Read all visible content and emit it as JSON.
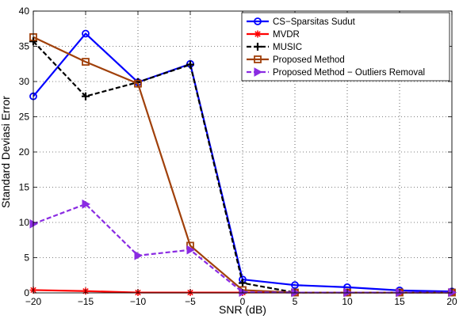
{
  "chart_data": {
    "type": "line",
    "title": "",
    "xlabel": "SNR (dB)",
    "ylabel": "Standard Deviasi Error",
    "x": [
      -20,
      -15,
      -10,
      -5,
      0,
      5,
      10,
      15,
      20
    ],
    "xlim": [
      -20,
      20
    ],
    "ylim": [
      0,
      40
    ],
    "xticks": [
      -20,
      -15,
      -10,
      -5,
      0,
      5,
      10,
      15,
      20
    ],
    "yticks": [
      0,
      5,
      10,
      15,
      20,
      25,
      30,
      35,
      40
    ],
    "grid": true,
    "legend_position": "top-right",
    "series": [
      {
        "name": "CS−Sparsitas Sudut",
        "color": "#0000ff",
        "line": "solid",
        "marker": "circle",
        "values": [
          27.9,
          36.8,
          29.9,
          32.5,
          1.9,
          1.1,
          0.8,
          0.35,
          0.2
        ]
      },
      {
        "name": "MVDR",
        "color": "#ff0000",
        "line": "solid",
        "marker": "star",
        "values": [
          0.4,
          0.25,
          0.05,
          0.05,
          0.05,
          0.05,
          0.05,
          0.05,
          0.05
        ]
      },
      {
        "name": "MUSIC",
        "color": "#000000",
        "line": "dashed",
        "marker": "plus",
        "values": [
          35.7,
          27.9,
          29.9,
          32.4,
          1.4,
          0.05,
          0.05,
          0.05,
          0.05
        ]
      },
      {
        "name": "Proposed Method",
        "color": "#a0400a",
        "line": "solid",
        "marker": "square",
        "values": [
          36.3,
          32.8,
          29.7,
          6.7,
          0.4,
          0.05,
          0.05,
          0.05,
          0.05
        ]
      },
      {
        "name": "Proposed Method − Outliers Removal",
        "color": "#8a2be2",
        "line": "dashed",
        "marker": "triangle-right",
        "values": [
          9.8,
          12.6,
          5.3,
          6.1,
          0.1,
          0.05,
          0.05,
          0.05,
          0.05
        ]
      }
    ]
  }
}
